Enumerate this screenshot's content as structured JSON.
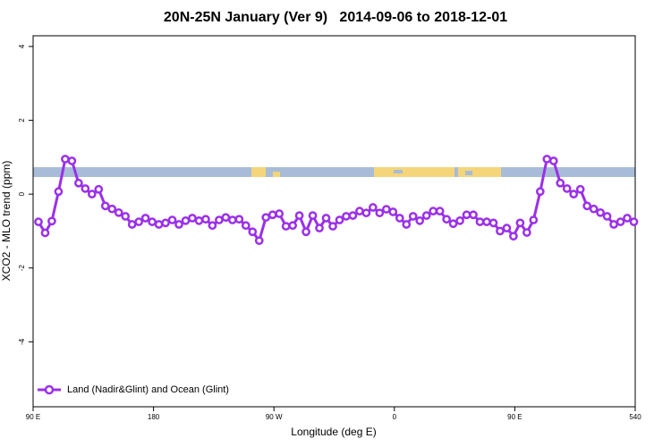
{
  "chart_data": {
    "type": "line",
    "title": "20N-25N January (Ver 9)   2014-09-06 to 2018-12-01",
    "x_label": "Longitude (deg E)",
    "y_label": "XCO2 - MLO trend (ppm)",
    "xlim": [
      90,
      540
    ],
    "xticks": [
      {
        "value": 90,
        "label": "90 E"
      },
      180,
      {
        "value": 270,
        "label": "90 W"
      },
      {
        "value": 360,
        "label": "0"
      },
      {
        "value": 450,
        "label": "90 E"
      },
      540
    ],
    "ylim": [
      -5.76,
      4.29
    ],
    "yticks": [
      4,
      2,
      0,
      -2,
      -4
    ],
    "legend": "lower left",
    "x": [
      94,
      99,
      104,
      109,
      114,
      119,
      124,
      129,
      134,
      139,
      144,
      149,
      154,
      159,
      164,
      169,
      174,
      179,
      184,
      189,
      194,
      199,
      204,
      209,
      214,
      219,
      224,
      229,
      234,
      239,
      244,
      249,
      254,
      259,
      264,
      269,
      274,
      279,
      284,
      289,
      294,
      299,
      304,
      309,
      314,
      319,
      324,
      329,
      334,
      339,
      344,
      349,
      354,
      359,
      364,
      369,
      374,
      379,
      384,
      389,
      394,
      399,
      404,
      409,
      414,
      419,
      424,
      429,
      434,
      439,
      444,
      449,
      454,
      459,
      464,
      469,
      474,
      479,
      484,
      489,
      494,
      499,
      504,
      509,
      514,
      519,
      524,
      529,
      534,
      539
    ],
    "series": [
      {
        "name": "Land (Nadir&Glint) and Ocean (Glint)",
        "color": "#9b30e8",
        "values": [
          -0.75,
          -1.05,
          -0.73,
          0.07,
          0.95,
          0.9,
          0.3,
          0.15,
          0.0,
          0.13,
          -0.32,
          -0.4,
          -0.5,
          -0.6,
          -0.82,
          -0.75,
          -0.65,
          -0.75,
          -0.82,
          -0.78,
          -0.7,
          -0.82,
          -0.72,
          -0.65,
          -0.72,
          -0.68,
          -0.85,
          -0.7,
          -0.63,
          -0.7,
          -0.68,
          -0.85,
          -1.02,
          -1.26,
          -0.63,
          -0.56,
          -0.53,
          -0.87,
          -0.85,
          -0.58,
          -1.02,
          -0.58,
          -0.92,
          -0.65,
          -0.87,
          -0.7,
          -0.6,
          -0.58,
          -0.46,
          -0.51,
          -0.36,
          -0.51,
          -0.41,
          -0.48,
          -0.65,
          -0.82,
          -0.6,
          -0.72,
          -0.58,
          -0.46,
          -0.46,
          -0.68,
          -0.8,
          -0.72,
          -0.56,
          -0.56,
          -0.75,
          -0.75,
          -0.78,
          -1.0,
          -0.92,
          -1.14,
          -0.78,
          -1.04,
          -0.7,
          0.07,
          0.95,
          0.9,
          0.3,
          0.15,
          0.0,
          0.13,
          -0.32,
          -0.4,
          -0.5,
          -0.6,
          -0.82,
          -0.75,
          -0.65,
          -0.75
        ]
      }
    ]
  }
}
